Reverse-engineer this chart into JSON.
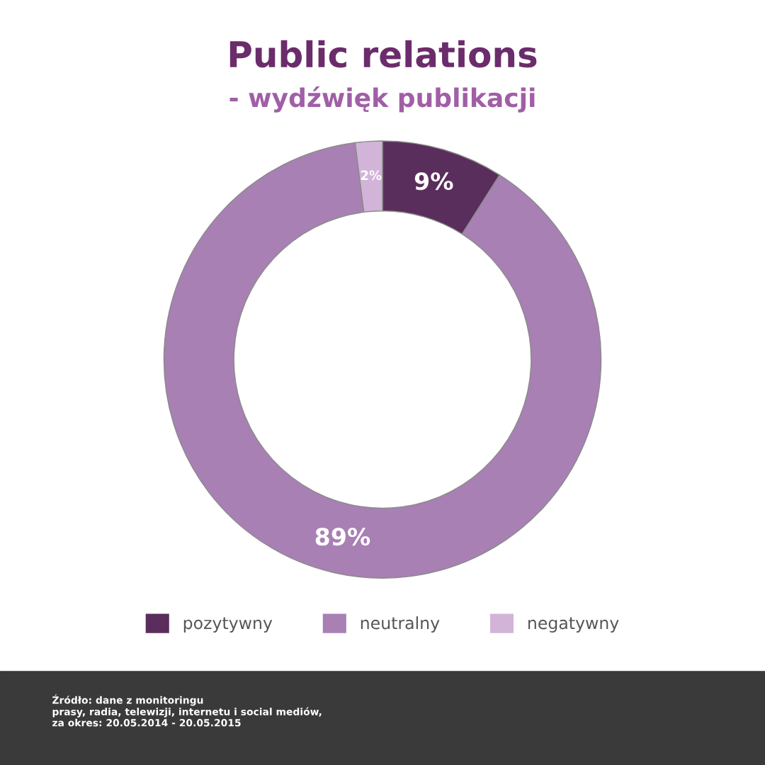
{
  "chart_data": {
    "type": "donut",
    "title": "Public relations",
    "subtitle": "- wydźwięk publikacji",
    "categories": [
      "pozytywny",
      "neutralny",
      "negatywny"
    ],
    "values": [
      9,
      89,
      2
    ],
    "colors": [
      "#5a2e5c",
      "#a880b4",
      "#d2b4d8"
    ],
    "value_labels": [
      "9%",
      "89%",
      "2%"
    ],
    "legend": "bottom",
    "annotations": [
      "Źródło: dane z monitoringu\nprasy, radia, telewizji, internetu i social mediów,\nza okres: 20.05.2014 - 20.05.2015"
    ]
  }
}
